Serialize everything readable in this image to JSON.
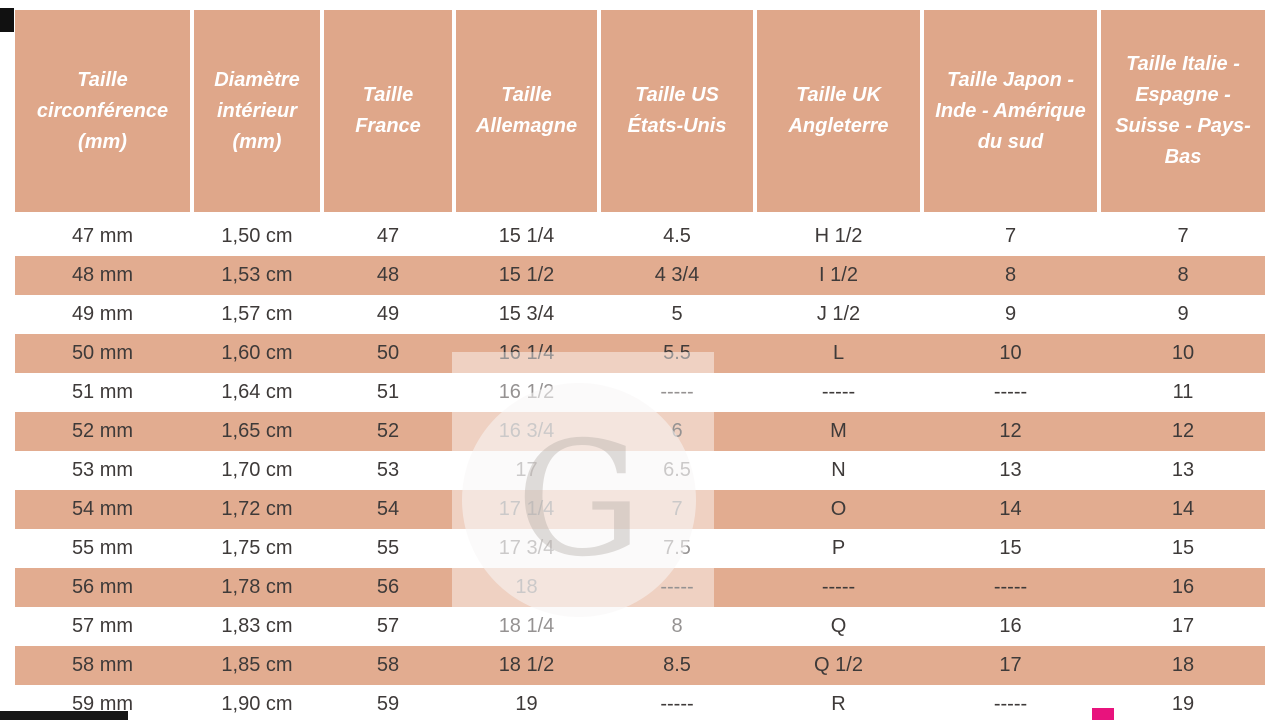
{
  "colors": {
    "header_bg": "#dfa78a",
    "row_alt_bg": "#e2ac90",
    "row_bg": "#ffffff",
    "header_text": "#ffffff",
    "body_text": "#3e3a39",
    "bottom_bar": "#161616",
    "pink_square": "#e8137d"
  },
  "watermark": {
    "letter": "G"
  },
  "chart_data": {
    "type": "table",
    "columns": [
      "Taille circonférence (mm)",
      "Diamètre intérieur (mm)",
      "Taille France",
      "Taille Allemagne",
      "Taille US États-Unis",
      "Taille UK Angleterre",
      "Taille Japon - Inde - Amérique du sud",
      "Taille Italie - Espagne - Suisse - Pays-Bas"
    ],
    "rows": [
      [
        "47 mm",
        "1,50 cm",
        "47",
        "15 1/4",
        "4.5",
        "H 1/2",
        "7",
        "7"
      ],
      [
        "48 mm",
        "1,53 cm",
        "48",
        "15 1/2",
        "4 3/4",
        "I 1/2",
        "8",
        "8"
      ],
      [
        "49 mm",
        "1,57 cm",
        "49",
        "15 3/4",
        "5",
        "J 1/2",
        "9",
        "9"
      ],
      [
        "50 mm",
        "1,60 cm",
        "50",
        "16 1/4",
        "5.5",
        "L",
        "10",
        "10"
      ],
      [
        "51 mm",
        "1,64 cm",
        "51",
        "16 1/2",
        "-----",
        "-----",
        "-----",
        "11"
      ],
      [
        "52 mm",
        "1,65 cm",
        "52",
        "16 3/4",
        "6",
        "M",
        "12",
        "12"
      ],
      [
        "53 mm",
        "1,70 cm",
        "53",
        "17",
        "6.5",
        "N",
        "13",
        "13"
      ],
      [
        "54 mm",
        "1,72 cm",
        "54",
        "17 1/4",
        "7",
        "O",
        "14",
        "14"
      ],
      [
        "55 mm",
        "1,75 cm",
        "55",
        "17 3/4",
        "7.5",
        "P",
        "15",
        "15"
      ],
      [
        "56 mm",
        "1,78 cm",
        "56",
        "18",
        "-----",
        "-----",
        "-----",
        "16"
      ],
      [
        "57 mm",
        "1,83 cm",
        "57",
        "18 1/4",
        "8",
        "Q",
        "16",
        "17"
      ],
      [
        "58 mm",
        "1,85 cm",
        "58",
        "18 1/2",
        "8.5",
        "Q 1/2",
        "17",
        "18"
      ],
      [
        "59 mm",
        "1,90 cm",
        "59",
        "19",
        "-----",
        "R",
        "-----",
        "19"
      ]
    ],
    "layout": {
      "striping": "alternating white and salmon rows, header salmon with white column gaps",
      "legend": "none",
      "grid": "off"
    }
  }
}
